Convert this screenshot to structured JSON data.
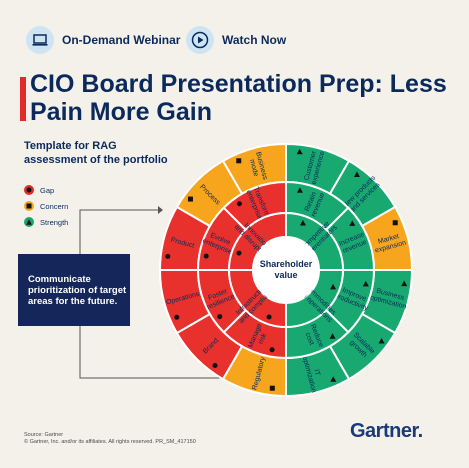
{
  "header": {
    "webinar_label": "On-Demand Webinar",
    "watch_label": "Watch Now",
    "webinar_icon": "laptop-icon",
    "watch_icon": "play-icon"
  },
  "title": "CIO Board Presentation Prep: Less Pain More Gain",
  "subtitle": "Template for RAG assessment of the portfolio",
  "legend": [
    {
      "label": "Gap",
      "icon": "circle-icon",
      "color": "#e22a2a"
    },
    {
      "label": "Concern",
      "icon": "square-icon",
      "color": "#f5a623"
    },
    {
      "label": "Strength",
      "icon": "triangle-icon",
      "color": "#16a76c"
    }
  ],
  "callout": "Communicate prioritization of target areas for the future.",
  "center_label": "Shareholder value",
  "colors": {
    "red": "#e8302c",
    "orange": "#f7a51c",
    "green": "#17a970",
    "navy": "#14265a"
  },
  "wheel": {
    "inner": [
      {
        "text": "Competitive differentiators",
        "color": "green",
        "mark": "triangle"
      },
      {
        "text": "Commodities and operations",
        "color": "green",
        "mark": "triangle"
      },
      {
        "text": "Infrastructure and compliance",
        "color": "red",
        "mark": "circle"
      },
      {
        "text": "Innovation and disruption",
        "color": "red",
        "mark": "circle"
      }
    ],
    "middle": [
      {
        "text": "Retain revenue",
        "color": "green",
        "mark": "triangle"
      },
      {
        "text": "Increase revenue",
        "color": "green",
        "mark": "triangle"
      },
      {
        "text": "Improve productivity",
        "color": "green",
        "mark": "triangle"
      },
      {
        "text": "Reduce cost",
        "color": "green",
        "mark": "triangle"
      },
      {
        "text": "Manage risk",
        "color": "red",
        "mark": "circle"
      },
      {
        "text": "Foster resilience",
        "color": "red",
        "mark": "circle"
      },
      {
        "text": "Evolve enterprise",
        "color": "red",
        "mark": "circle"
      },
      {
        "text": "Transform enterprise",
        "color": "red",
        "mark": "circle"
      }
    ],
    "outer": [
      {
        "text": "Customer experience",
        "color": "green",
        "mark": "triangle"
      },
      {
        "text": "New products and services",
        "color": "green",
        "mark": "triangle"
      },
      {
        "text": "Market expansion",
        "color": "orange",
        "mark": "square"
      },
      {
        "text": "Business optimization",
        "color": "green",
        "mark": "triangle"
      },
      {
        "text": "Scalable growth",
        "color": "green",
        "mark": "triangle"
      },
      {
        "text": "IT optimization",
        "color": "green",
        "mark": "triangle"
      },
      {
        "text": "Regulatory",
        "color": "orange",
        "mark": "square"
      },
      {
        "text": "Brand",
        "color": "red",
        "mark": "circle"
      },
      {
        "text": "Operations",
        "color": "red",
        "mark": "circle"
      },
      {
        "text": "Product",
        "color": "red",
        "mark": "circle"
      },
      {
        "text": "Process",
        "color": "orange",
        "mark": "square"
      },
      {
        "text": "Business mode",
        "color": "orange",
        "mark": "square"
      }
    ]
  },
  "footer": {
    "source": "Source: Gartner",
    "copyright": "© Gartner, Inc. and/or its affiliates. All rights reserved. PR_SM_417150"
  },
  "logo": "Gartner."
}
